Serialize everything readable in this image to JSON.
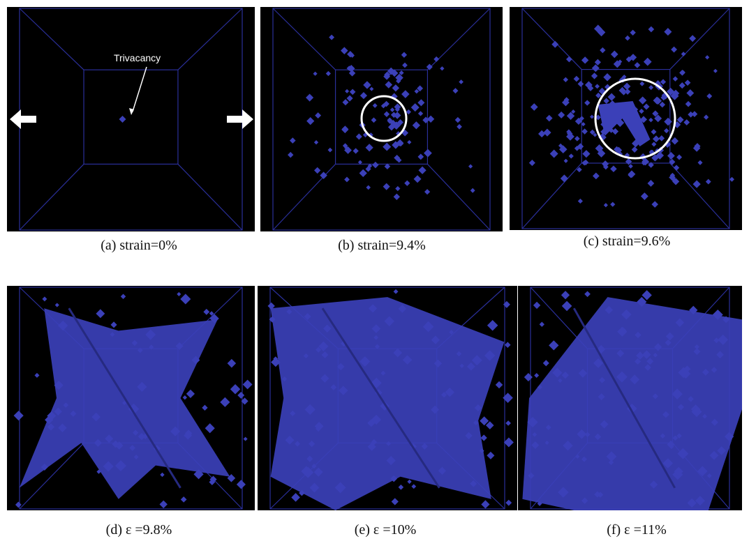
{
  "panels": [
    {
      "caption": "(a) strain=0%",
      "annotation": "Trivacancy"
    },
    {
      "caption": "(b) strain=9.4%"
    },
    {
      "caption": "(c) strain=9.6%"
    },
    {
      "caption": "(d) ε =9.8%"
    },
    {
      "caption": "(e) ε =10%"
    },
    {
      "caption": "(f) ε =11%"
    }
  ]
}
